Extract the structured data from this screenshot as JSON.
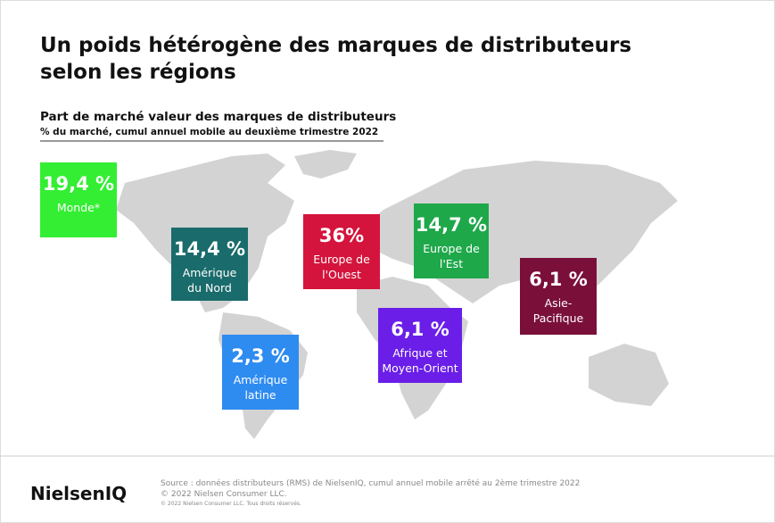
{
  "header": {
    "title_lines": [
      "Un poids hétérogène des marques de distributeurs",
      "selon les régions"
    ],
    "subtitle": "Part de marché valeur des marques de distributeurs",
    "note": "% du marché, cumul annuel mobile au deuxième trimestre 2022"
  },
  "regions": [
    {
      "value": "19,4 %",
      "label_lines": [
        "Monde*"
      ]
    },
    {
      "value": "14,4 %",
      "label_lines": [
        "Amérique",
        "du Nord"
      ]
    },
    {
      "value": "36%",
      "label_lines": [
        "Europe de",
        "l'Ouest"
      ]
    },
    {
      "value": "14,7 %",
      "label_lines": [
        "Europe de",
        "l'Est"
      ]
    },
    {
      "value": "6,1 %",
      "label_lines": [
        "Asie-",
        "Pacifique"
      ]
    },
    {
      "value": "6,1 %",
      "label_lines": [
        "Afrique et",
        "Moyen-Orient"
      ]
    },
    {
      "value": "2,3 %",
      "label_lines": [
        "Amérique",
        "latine"
      ]
    }
  ],
  "footer": {
    "logo": "NielsenIQ",
    "source": "Source : données distributeurs (RMS) de NielsenIQ,  cumul annuel mobile arrêté au 2ème trimestre 2022",
    "copyright": "© 2022 Nielsen Consumer LLC.",
    "rights": "© 2022 Nielsen Consumer LLC. Tous droits réservés."
  }
}
